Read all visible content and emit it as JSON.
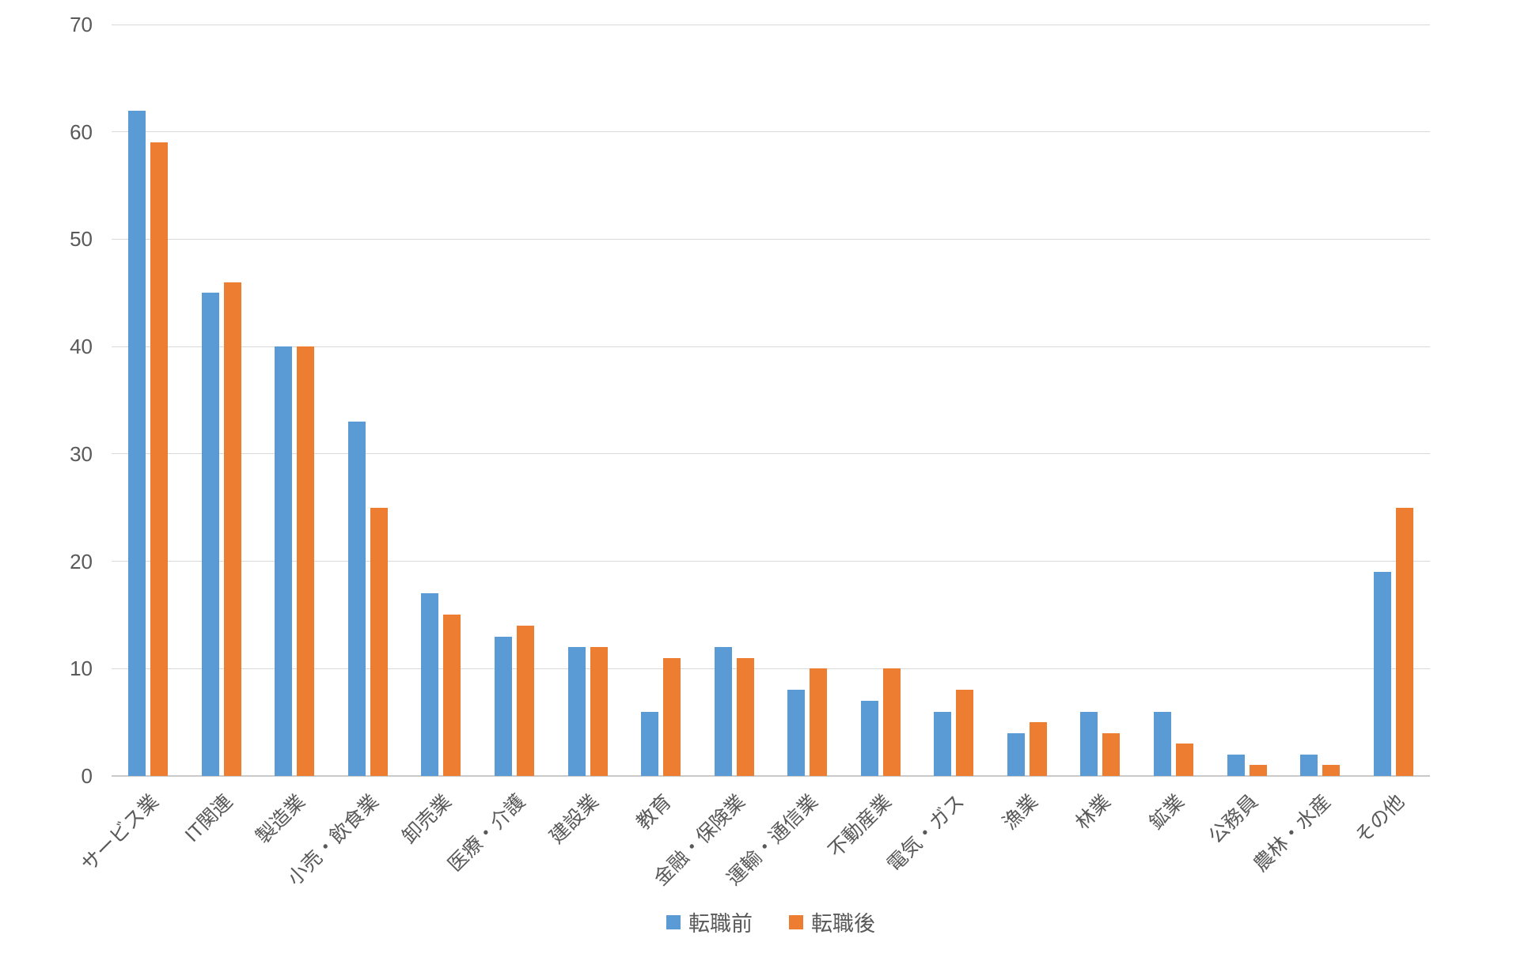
{
  "chart_data": {
    "type": "bar",
    "title": "",
    "xlabel": "",
    "ylabel": "",
    "categories": [
      "サービス業",
      "IT関連",
      "製造業",
      "小売・飲食業",
      "卸売業",
      "医療・介護",
      "建設業",
      "教育",
      "金融・保険業",
      "運輸・通信業",
      "不動産業",
      "電気・ガス",
      "漁業",
      "林業",
      "鉱業",
      "公務員",
      "農林・水産",
      "その他"
    ],
    "series": [
      {
        "name": "転職前",
        "slug": "before-job-change",
        "color": "#5B9BD5",
        "values": [
          62,
          45,
          40,
          33,
          17,
          13,
          12,
          6,
          12,
          8,
          7,
          6,
          4,
          6,
          6,
          2,
          2,
          19
        ]
      },
      {
        "name": "転職後",
        "slug": "after-job-change",
        "color": "#ED7D31",
        "values": [
          59,
          46,
          40,
          25,
          15,
          14,
          12,
          11,
          11,
          10,
          10,
          8,
          5,
          4,
          3,
          1,
          1,
          25
        ]
      }
    ],
    "ylim": [
      0,
      70
    ],
    "ytick_step": 10,
    "y_ticks": [
      0,
      10,
      20,
      30,
      40,
      50,
      60,
      70
    ],
    "grid": true,
    "legend_position": "bottom"
  },
  "style": {
    "background": "#FFFFFF",
    "axis_text_color": "#595959",
    "gridline_color": "#D9D9D9",
    "axis_line_color": "#C9C9C9"
  }
}
